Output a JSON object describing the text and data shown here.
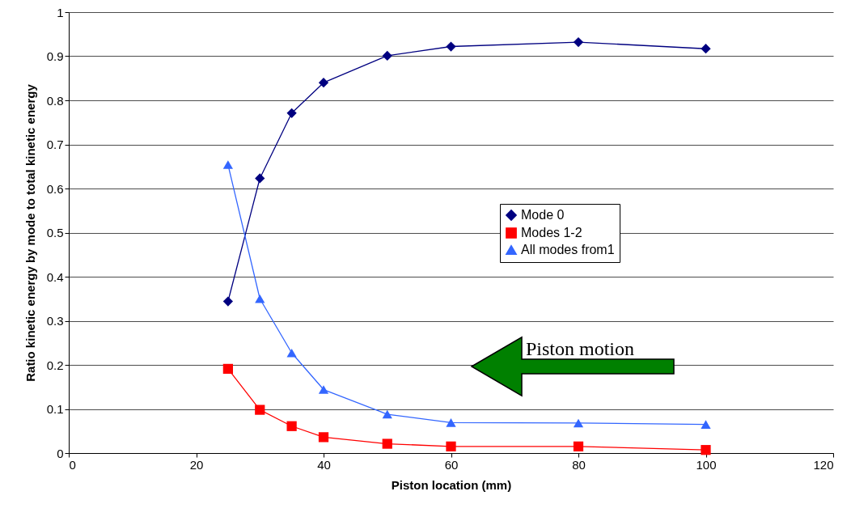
{
  "chart_data": {
    "type": "line",
    "xlabel": "Piston location (mm)",
    "ylabel": "Ratio kinetic energy by mode to total kinetic energy",
    "x": [
      25,
      30,
      35,
      40,
      50,
      60,
      80,
      100
    ],
    "series": [
      {
        "name": "Mode 0",
        "color": "#000080",
        "marker": "diamond",
        "values": [
          0.344,
          0.623,
          0.771,
          0.84,
          0.901,
          0.922,
          0.932,
          0.917
        ]
      },
      {
        "name": "Modes 1-2",
        "color": "#ff0000",
        "marker": "square",
        "values": [
          0.191,
          0.098,
          0.061,
          0.036,
          0.021,
          0.015,
          0.015,
          0.007
        ]
      },
      {
        "name": "All modes from1",
        "color": "#3366ff",
        "marker": "triangle",
        "values": [
          0.654,
          0.35,
          0.227,
          0.144,
          0.088,
          0.069,
          0.068,
          0.065
        ]
      }
    ],
    "xlim": [
      0,
      120
    ],
    "xticks": [
      0,
      20,
      40,
      60,
      80,
      100,
      120
    ],
    "ylim": [
      0,
      1
    ],
    "yticks": [
      0,
      0.1,
      0.2,
      0.3,
      0.4,
      0.5,
      0.6,
      0.7,
      0.8,
      0.9,
      1
    ],
    "grid": "y",
    "legend": "right",
    "line_style": "solid",
    "annotations": [
      "Piston motion"
    ]
  }
}
